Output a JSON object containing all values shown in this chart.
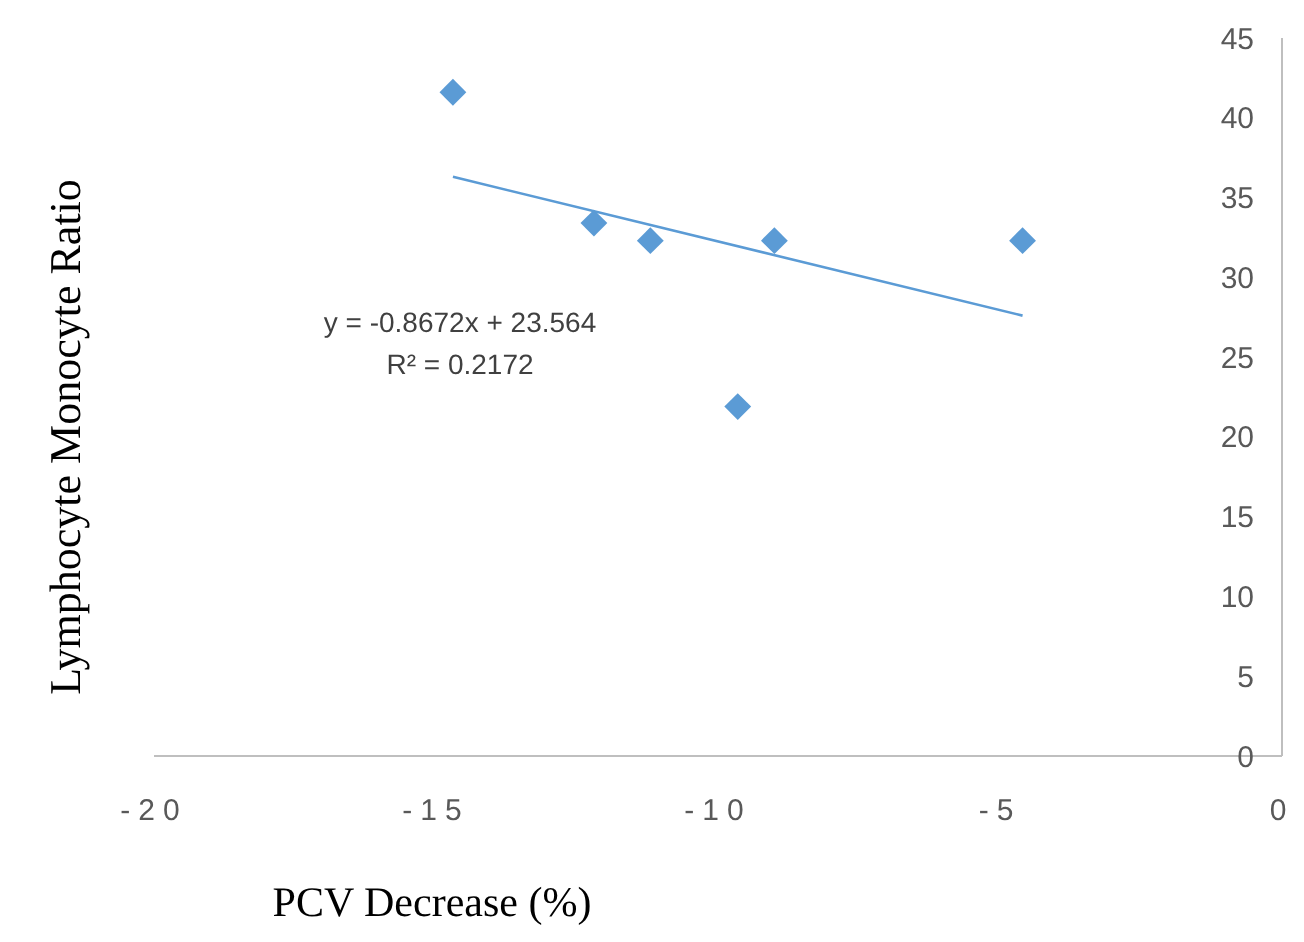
{
  "chart_data": {
    "type": "scatter",
    "xlabel": "PCV Decrease (%)",
    "ylabel": "Lymphocyte Monocyte Ratio",
    "xlim": [
      -20,
      0
    ],
    "ylim": [
      0,
      45
    ],
    "xticks": [
      -20,
      -15,
      -10,
      -5,
      0
    ],
    "yticks": [
      0,
      5,
      10,
      15,
      20,
      25,
      30,
      35,
      40,
      45
    ],
    "grid": false,
    "series": [
      {
        "color": "#5b9bd5",
        "marker": "diamond",
        "x": [
          -14.7,
          -12.2,
          -11.2,
          -9.65,
          -9.0,
          -4.6
        ],
        "values": [
          41.6,
          33.4,
          32.3,
          21.9,
          32.3,
          32.3
        ]
      },
      {
        "type": "line",
        "marker": "none",
        "color": "#5b9bd5",
        "x": [
          -14.7,
          -4.6
        ],
        "values": [
          36.3,
          27.6
        ]
      }
    ],
    "annotations": [
      "y = -0.8672x + 23.564",
      "R² = 0.2172"
    ]
  }
}
